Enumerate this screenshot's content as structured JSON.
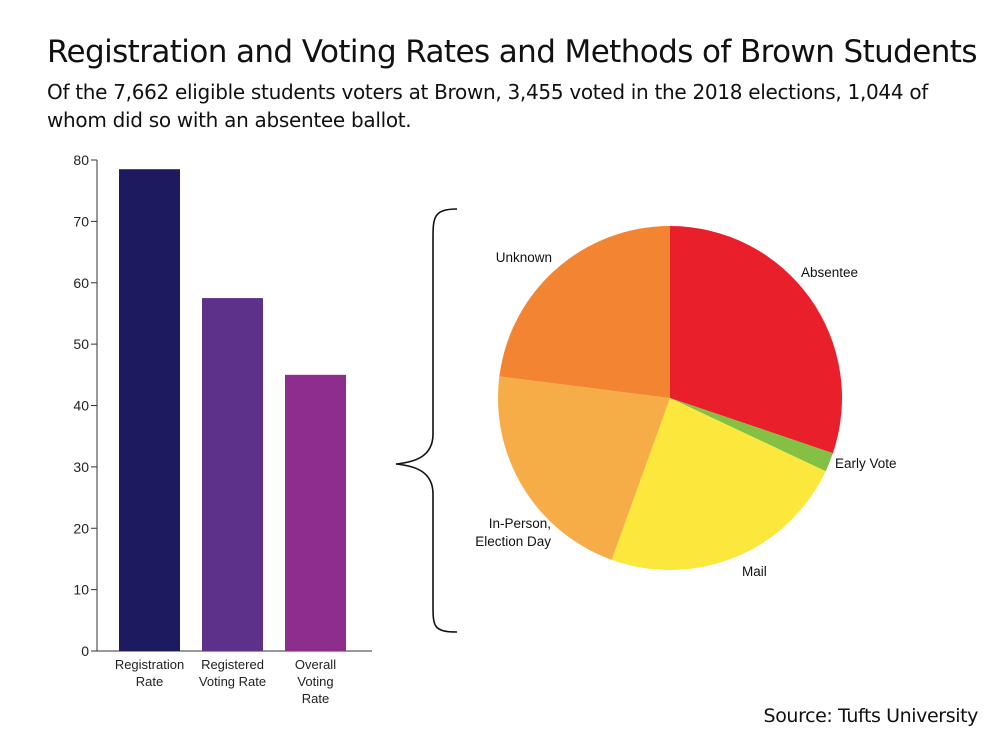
{
  "title": "Registration and Voting Rates and Methods of Brown Students",
  "subtitle": "Of the 7,662 eligible students voters at Brown, 3,455 voted in the 2018 elections, 1,044 of whom did so with an absentee ballot.",
  "source": "Source: Tufts University",
  "chart_data": [
    {
      "type": "bar",
      "categories": [
        [
          "Registration",
          "Rate"
        ],
        [
          "Registered",
          "Voting Rate"
        ],
        [
          "Overall",
          "Voting",
          "Rate"
        ]
      ],
      "values": [
        78.5,
        57.5,
        45
      ],
      "colors": [
        "#1d1a5f",
        "#5d308a",
        "#8d2d8e"
      ],
      "ylim": [
        0,
        80
      ],
      "yticks": [
        0,
        10,
        20,
        30,
        40,
        50,
        60,
        70,
        80
      ],
      "xlabel": "",
      "ylabel": ""
    },
    {
      "type": "pie",
      "slices": [
        {
          "label": [
            "Absentee"
          ],
          "value": 30.2,
          "color": "#e9202c"
        },
        {
          "label": [
            "Early Vote"
          ],
          "value": 1.8,
          "color": "#83c043"
        },
        {
          "label": [
            "Mail"
          ],
          "value": 23.5,
          "color": "#fce83c"
        },
        {
          "label": [
            "In-Person,",
            "Election Day"
          ],
          "value": 21.5,
          "color": "#f7ad47"
        },
        {
          "label": [
            "Unknown"
          ],
          "value": 23.0,
          "color": "#f38431"
        }
      ]
    }
  ]
}
